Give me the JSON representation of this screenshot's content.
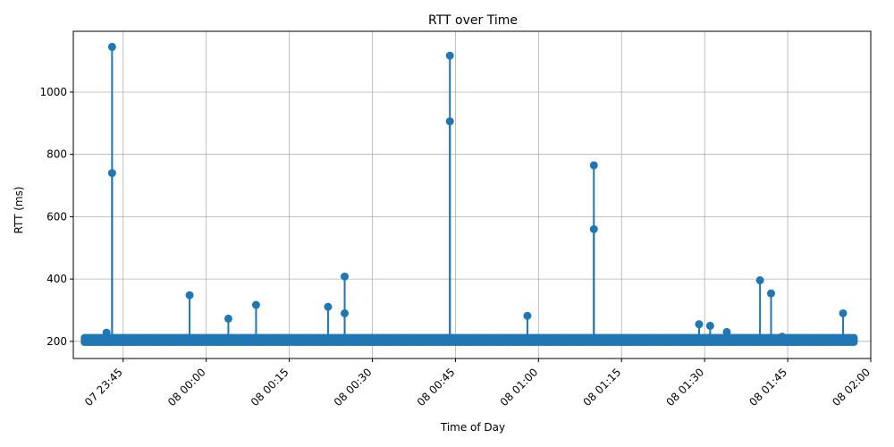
{
  "chart_data": {
    "type": "line",
    "title": "RTT over Time",
    "xlabel": "Time of Day",
    "ylabel": "RTT (ms)",
    "x_start": "07 23:38",
    "x_end": "08 01:57",
    "xlim": [
      "07 23:36",
      "08 02:00"
    ],
    "ylim": [
      145,
      1195
    ],
    "grid": true,
    "marker": "circle",
    "color": "#1f77b4",
    "x_ticks": [
      "07 23:45",
      "08 00:00",
      "08 00:15",
      "08 00:30",
      "08 00:45",
      "08 01:00",
      "08 01:15",
      "08 01:30",
      "08 01:45",
      "08 02:00"
    ],
    "y_ticks": [
      200,
      400,
      600,
      800,
      1000
    ],
    "baseline_rtt": [
      197,
      212
    ],
    "series": [
      {
        "name": "",
        "points": [
          {
            "x": "07 23:42",
            "y": 228
          },
          {
            "x": "07 23:43",
            "y": 1145
          },
          {
            "x": "07 23:43",
            "y": 740
          },
          {
            "x": "07 23:57",
            "y": 348
          },
          {
            "x": "08 00:04",
            "y": 273
          },
          {
            "x": "08 00:09",
            "y": 317
          },
          {
            "x": "08 00:22",
            "y": 311
          },
          {
            "x": "08 00:25",
            "y": 290
          },
          {
            "x": "08 00:25",
            "y": 408
          },
          {
            "x": "08 00:44",
            "y": 1117
          },
          {
            "x": "08 00:44",
            "y": 906
          },
          {
            "x": "08 00:58",
            "y": 282
          },
          {
            "x": "08 01:10",
            "y": 765
          },
          {
            "x": "08 01:10",
            "y": 560
          },
          {
            "x": "08 01:29",
            "y": 255
          },
          {
            "x": "08 01:31",
            "y": 250
          },
          {
            "x": "08 01:34",
            "y": 230
          },
          {
            "x": "08 01:40",
            "y": 396
          },
          {
            "x": "08 01:42",
            "y": 354
          },
          {
            "x": "08 01:44",
            "y": 215
          },
          {
            "x": "08 01:55",
            "y": 290
          }
        ]
      }
    ]
  }
}
